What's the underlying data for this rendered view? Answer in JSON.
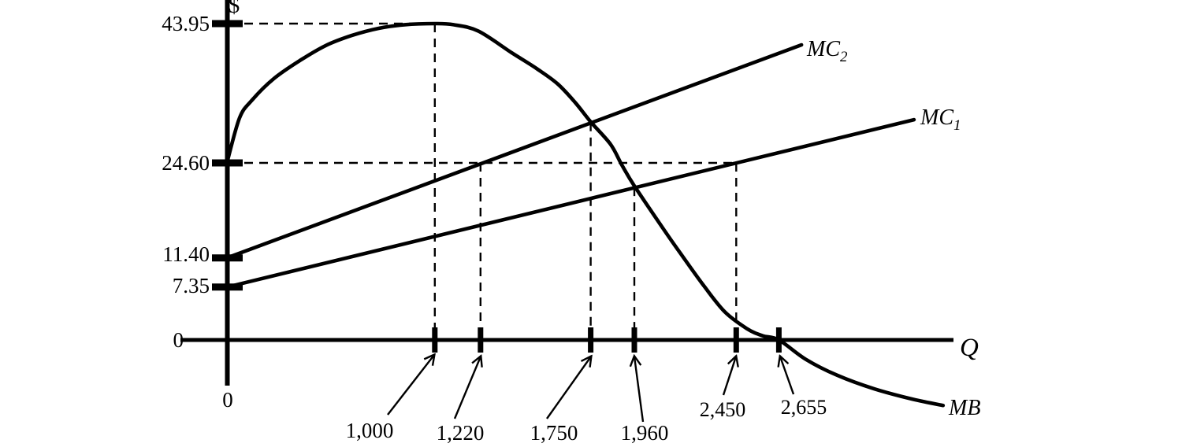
{
  "figure": {
    "background": "#ffffff",
    "ink": "#000000"
  },
  "axes": {
    "y_axis_symbol": "$",
    "x_axis_symbol": "Q",
    "origin_label": "0",
    "y_ticks": [
      {
        "label": "43.95",
        "value": 43.95,
        "tick": true
      },
      {
        "label": "24.60",
        "value": 24.6,
        "tick": true
      },
      {
        "label": "11.40",
        "value": 11.4,
        "tick": true
      },
      {
        "label": "7.35",
        "value": 7.35,
        "tick": true
      },
      {
        "label": "0",
        "value": 0,
        "tick": false
      }
    ],
    "x_ticks": [
      {
        "label": "1,000",
        "value": 1000
      },
      {
        "label": "1,220",
        "value": 1220
      },
      {
        "label": "1,750",
        "value": 1750
      },
      {
        "label": "1,960",
        "value": 1960
      },
      {
        "label": "2,450",
        "value": 2450
      },
      {
        "label": "2,655",
        "value": 2655
      }
    ]
  },
  "curves": {
    "mb": {
      "label": "MB"
    },
    "mc1": {
      "label": "MC",
      "sub": "1"
    },
    "mc2": {
      "label": "MC",
      "sub": "2"
    }
  },
  "chart_data": {
    "type": "line",
    "title": "",
    "xlabel": "Q",
    "ylabel": "$",
    "xlim": [
      0,
      3500
    ],
    "ylim": [
      -10,
      47
    ],
    "grid": false,
    "legend_position": "inline-end-labels",
    "y_axis_ticks": [
      43.95,
      24.6,
      11.4,
      7.35,
      0
    ],
    "x_axis_ticks": [
      1000,
      1220,
      1750,
      1960,
      2450,
      2655
    ],
    "series": [
      {
        "name": "MB",
        "style": "curve",
        "points": [
          [
            0,
            24.6
          ],
          [
            60,
            30.8
          ],
          [
            120,
            33.3
          ],
          [
            225,
            36.3
          ],
          [
            350,
            38.8
          ],
          [
            475,
            40.9
          ],
          [
            600,
            42.3
          ],
          [
            730,
            43.3
          ],
          [
            855,
            43.8
          ],
          [
            1000,
            43.95
          ],
          [
            1090,
            43.8
          ],
          [
            1210,
            42.9
          ],
          [
            1370,
            39.9
          ],
          [
            1490,
            37.7
          ],
          [
            1590,
            35.6
          ],
          [
            1675,
            33.0
          ],
          [
            1750,
            30.3
          ],
          [
            1845,
            27.2
          ],
          [
            1900,
            24.3
          ],
          [
            1960,
            21.4
          ],
          [
            2105,
            15.2
          ],
          [
            2195,
            11.5
          ],
          [
            2295,
            7.5
          ],
          [
            2395,
            3.9
          ],
          [
            2500,
            1.6
          ],
          [
            2575,
            0.6
          ],
          [
            2655,
            0
          ],
          [
            2785,
            -2.7
          ],
          [
            2935,
            -4.9
          ],
          [
            3115,
            -6.8
          ],
          [
            3295,
            -8.2
          ],
          [
            3445,
            -9.1
          ]
        ]
      },
      {
        "name": "MC1",
        "style": "straight",
        "points": [
          [
            0,
            7.35
          ],
          [
            3305,
            30.6
          ]
        ]
      },
      {
        "name": "MC2",
        "style": "straight",
        "points": [
          [
            0,
            11.4
          ],
          [
            2764,
            41.0
          ]
        ]
      }
    ],
    "dashed_guides": {
      "horizontal": [
        {
          "value": 43.95,
          "to_q": 1000
        },
        {
          "value": 24.6,
          "to_q": 2450
        }
      ],
      "vertical": [
        {
          "q": 1000,
          "to_value": 43.95
        },
        {
          "q": 1220,
          "to_value": 24.6
        },
        {
          "q": 1750,
          "to_value": 30.2
        },
        {
          "q": 1960,
          "to_value": 21.2
        },
        {
          "q": 2450,
          "to_value": 24.6
        }
      ]
    }
  }
}
